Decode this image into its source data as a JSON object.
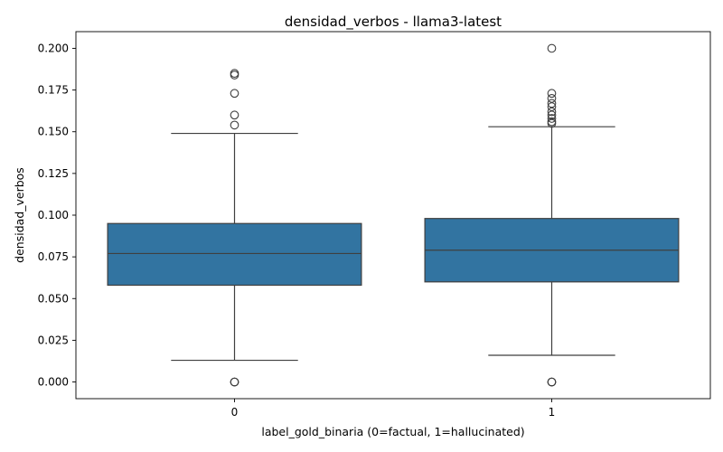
{
  "chart_data": {
    "type": "box",
    "title": "densidad_verbos - llama3-latest",
    "xlabel": "label_gold_binaria (0=factual, 1=hallucinated)",
    "ylabel": "densidad_verbos",
    "categories": [
      "0",
      "1"
    ],
    "ylim": [
      -0.01,
      0.21
    ],
    "yticks": [
      "0.000",
      "0.025",
      "0.050",
      "0.075",
      "0.100",
      "0.125",
      "0.150",
      "0.175",
      "0.200"
    ],
    "grid": false,
    "box_color": "#3274a1",
    "boxes": [
      {
        "category": "0",
        "q1": 0.058,
        "median": 0.077,
        "q3": 0.095,
        "whisker_low": 0.013,
        "whisker_high": 0.149,
        "outliers": [
          0.0,
          0.0,
          0.0,
          0.154,
          0.16,
          0.173,
          0.184,
          0.185
        ]
      },
      {
        "category": "1",
        "q1": 0.06,
        "median": 0.079,
        "q3": 0.098,
        "whisker_low": 0.016,
        "whisker_high": 0.153,
        "outliers": [
          0.0,
          0.0,
          0.0,
          0.155,
          0.156,
          0.158,
          0.16,
          0.162,
          0.165,
          0.167,
          0.17,
          0.173,
          0.2
        ]
      }
    ]
  }
}
